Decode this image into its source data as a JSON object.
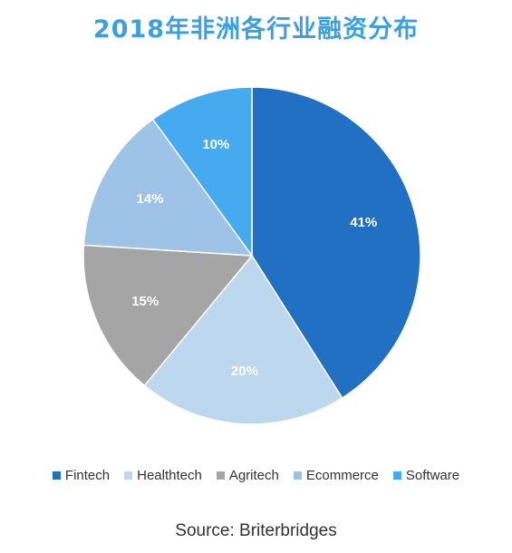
{
  "colors": {
    "title": "#3aa0e0",
    "Fintech": "#2170c4",
    "Healthtech": "#bdd7ee",
    "Agritech": "#a5a5a5",
    "Ecommerce": "#9dc3e6",
    "Software": "#45aaf0"
  },
  "chart_data": {
    "type": "pie",
    "title": "2018年非洲各行业融资分布",
    "categories": [
      "Fintech",
      "Healthtech",
      "Agritech",
      "Ecommerce",
      "Software"
    ],
    "values": [
      41,
      20,
      15,
      14,
      10
    ],
    "data_labels": [
      "41%",
      "20%",
      "15%",
      "14%",
      "10%"
    ],
    "legend_position": "bottom",
    "source": "Source: Briterbridges"
  }
}
